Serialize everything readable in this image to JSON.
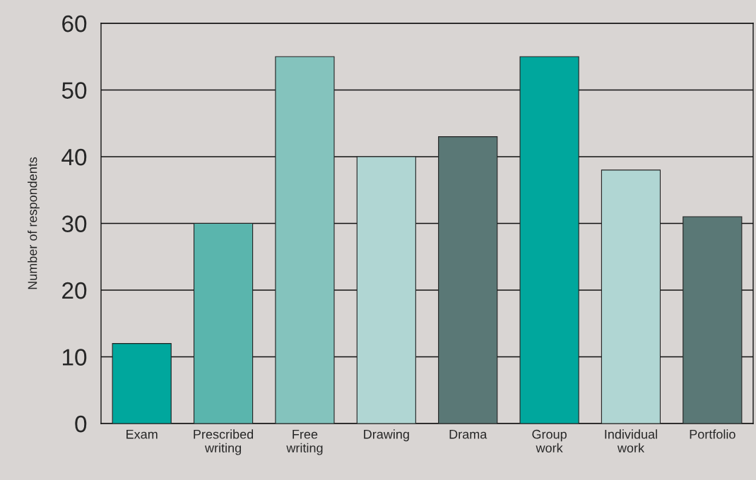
{
  "chart_data": {
    "type": "bar",
    "ylabel": "Number of respondents",
    "categories": [
      "Exam",
      "Prescribed\nwriting",
      "Free\nwriting",
      "Drawing",
      "Drama",
      "Group\nwork",
      "Individual\nwork",
      "Portfolio"
    ],
    "values": [
      12,
      30,
      55,
      40,
      43,
      55,
      38,
      31
    ],
    "colors": [
      "#00a79d",
      "#5ab5ad",
      "#84c3bd",
      "#b0d6d3",
      "#5a7876",
      "#00a79d",
      "#b0d6d3",
      "#5a7876"
    ],
    "ylim": [
      0,
      60
    ],
    "yticks": [
      0,
      10,
      20,
      30,
      40,
      50,
      60
    ],
    "grid": "y"
  }
}
